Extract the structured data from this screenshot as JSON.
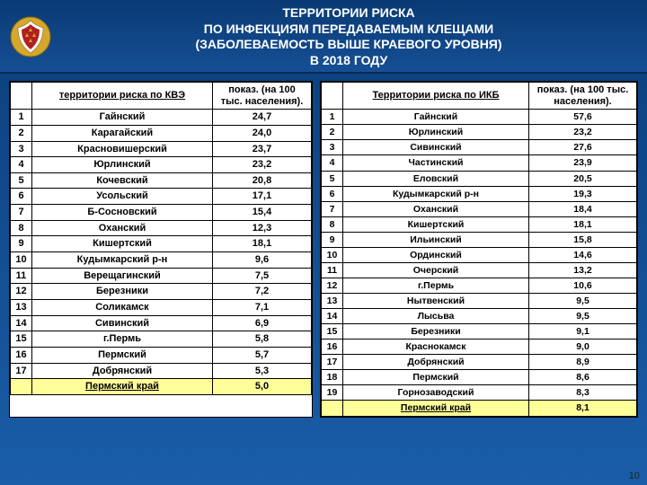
{
  "colors": {
    "bg_top": "#0a3e7a",
    "bg_bottom": "#1a5da8",
    "header_top": "#0a3a74",
    "header_bottom": "#164f94",
    "table_bg": "#ffffff",
    "border": "#000000",
    "total_bg": "#ffff99",
    "title_text": "#ffffff",
    "emblem_gold": "#d4a82c",
    "emblem_red": "#b02020"
  },
  "title_lines": [
    "ТЕРРИТОРИИ РИСКА",
    "ПО ИНФЕКЦИЯМ ПЕРЕДАВАЕМЫМ КЛЕЩАМИ",
    "(ЗАБОЛЕВАЕМОСТЬ ВЫШЕ КРАЕВОГО УРОВНЯ)",
    "В 2018 ГОДУ"
  ],
  "page_number": "10",
  "left_table": {
    "col_num_width": 24,
    "header_territory": "территории  риска по КВЭ",
    "header_rate": "показ. (на 100 тыс. населения).",
    "rows": [
      {
        "n": "1",
        "name": "Гайнский",
        "val": "24,7"
      },
      {
        "n": "2",
        "name": "Карагайский",
        "val": "24,0"
      },
      {
        "n": "3",
        "name": "Красновишерский",
        "val": "23,7"
      },
      {
        "n": "4",
        "name": "Юрлинский",
        "val": "23,2"
      },
      {
        "n": "5",
        "name": "Кочевский",
        "val": "20,8"
      },
      {
        "n": "6",
        "name": "Усольский",
        "val": "17,1"
      },
      {
        "n": "7",
        "name": "Б-Сосновский",
        "val": "15,4"
      },
      {
        "n": "8",
        "name": "Оханский",
        "val": "12,3"
      },
      {
        "n": "9",
        "name": "Кишертский",
        "val": "18,1"
      },
      {
        "n": "10",
        "name": "Кудымкарский р-н",
        "val": "9,6"
      },
      {
        "n": "11",
        "name": "Верещагинский",
        "val": "7,5"
      },
      {
        "n": "12",
        "name": "Березники",
        "val": "7,2"
      },
      {
        "n": "13",
        "name": "Соликамск",
        "val": "7,1"
      },
      {
        "n": "14",
        "name": "Сивинский",
        "val": "6,9"
      },
      {
        "n": "15",
        "name": "г.Пермь",
        "val": "5,8"
      },
      {
        "n": "16",
        "name": "Пермский",
        "val": "5,7"
      },
      {
        "n": "17",
        "name": "Добрянский",
        "val": "5,3"
      }
    ],
    "total": {
      "label": "Пермский край",
      "val": "5,0"
    }
  },
  "right_table": {
    "col_num_width": 24,
    "header_territory": "Территории риска по ИКБ",
    "header_rate": "показ. (на 100 тыс. населения).",
    "rows": [
      {
        "n": "1",
        "name": "Гайнский",
        "val": "57,6"
      },
      {
        "n": "2",
        "name": "Юрлинский",
        "val": "23,2"
      },
      {
        "n": "3",
        "name": "Сивинский",
        "val": "27,6"
      },
      {
        "n": "4",
        "name": "Частинский",
        "val": "23,9"
      },
      {
        "n": "5",
        "name": "Еловский",
        "val": "20,5"
      },
      {
        "n": "6",
        "name": "Кудымкарский р-н",
        "val": "19,3"
      },
      {
        "n": "7",
        "name": "Оханский",
        "val": "18,4"
      },
      {
        "n": "8",
        "name": "Кишертский",
        "val": "18,1"
      },
      {
        "n": "9",
        "name": "Ильинский",
        "val": "15,8"
      },
      {
        "n": "10",
        "name": "Ординский",
        "val": "14,6"
      },
      {
        "n": "11",
        "name": "Очерский",
        "val": "13,2"
      },
      {
        "n": "12",
        "name": "г.Пермь",
        "val": "10,6"
      },
      {
        "n": "13",
        "name": "Нытвенский",
        "val": "9,5"
      },
      {
        "n": "14",
        "name": "Лысьва",
        "val": "9,5"
      },
      {
        "n": "15",
        "name": "Березники",
        "val": "9,1"
      },
      {
        "n": "16",
        "name": "Краснокамск",
        "val": "9,0"
      },
      {
        "n": "17",
        "name": "Добрянский",
        "val": "8,9"
      },
      {
        "n": "18",
        "name": "Пермский",
        "val": "8,6"
      },
      {
        "n": "19",
        "name": "Горнозаводский",
        "val": "8,3"
      }
    ],
    "total": {
      "label": "Пермский край",
      "val": "8,1"
    }
  }
}
